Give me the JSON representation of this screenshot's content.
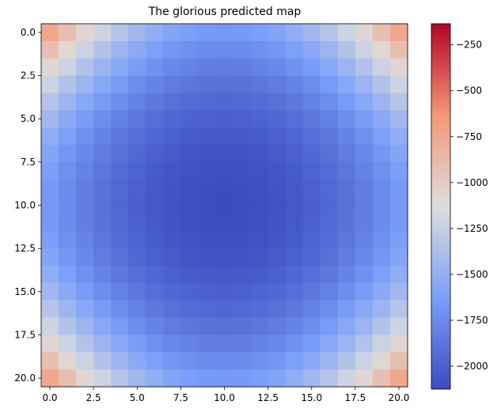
{
  "chart_data": {
    "type": "heatmap",
    "title": "The glorious predicted map",
    "colormap": "coolwarm",
    "grid": false,
    "rows": 21,
    "cols": 21,
    "value_model": {
      "description": "value(i,j) = -2125 + 4.6*((i-10)^2 + (j-10)^2) + 0.046*(i-10)^2*(j-10)^2",
      "center": -2125,
      "quadratic_coef": 4.6,
      "cross_coef": 0.046
    },
    "xlim": [
      -0.5,
      20.5
    ],
    "ylim": [
      20.5,
      -0.5
    ],
    "x_ticks": [
      "0.0",
      "2.5",
      "5.0",
      "7.5",
      "10.0",
      "12.5",
      "15.0",
      "17.5",
      "20.0"
    ],
    "y_ticks": [
      "0.0",
      "2.5",
      "5.0",
      "7.5",
      "10.0",
      "12.5",
      "15.0",
      "17.5",
      "20.0"
    ],
    "colorbar": {
      "vmin": -2125,
      "vmax": -135,
      "ticks": [
        "−250",
        "−500",
        "−750",
        "−1000",
        "−1250",
        "−1500",
        "−1750",
        "−2000"
      ]
    }
  }
}
